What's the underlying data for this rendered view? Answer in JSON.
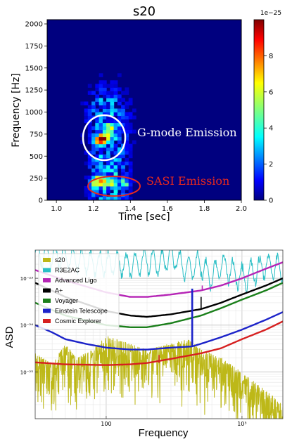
{
  "chart_data": [
    {
      "type": "heatmap",
      "title": "s20",
      "xlabel": "Time [sec]",
      "ylabel": "Frequency [Hz]",
      "xlim": [
        0.95,
        2.0
      ],
      "ylim": [
        0,
        2048
      ],
      "xticks": [
        "1.0",
        "1.2",
        "1.4",
        "1.6",
        "1.8",
        "2.0"
      ],
      "yticks": [
        "0",
        "250",
        "500",
        "750",
        "1000",
        "1250",
        "1500",
        "1750",
        "2000"
      ],
      "colorbar": {
        "label": "1e−25",
        "range": [
          0,
          10
        ],
        "ticks": [
          "0",
          "2",
          "4",
          "6",
          "8"
        ]
      },
      "colormap": "jet",
      "annotations": [
        {
          "text": "G-mode Emission",
          "color": "#ffffff",
          "ellipse_color": "#ffffff",
          "ellipse_center": [
            1.25,
            700
          ]
        },
        {
          "text": "SASI Emission",
          "color": "#e8281e",
          "ellipse_color": "#e8281e",
          "ellipse_center": [
            1.3,
            160
          ]
        }
      ],
      "cells_description_values": [
        {
          "t": 1.22,
          "f": 660,
          "v": 9.5
        },
        {
          "t": 1.25,
          "f": 700,
          "v": 7.5
        },
        {
          "t": 1.28,
          "f": 800,
          "v": 6.0
        },
        {
          "t": 1.2,
          "f": 180,
          "v": 7.0
        },
        {
          "t": 1.24,
          "f": 200,
          "v": 6.0
        },
        {
          "t": 1.3,
          "f": 190,
          "v": 5.0
        },
        {
          "t": 1.36,
          "f": 180,
          "v": 4.5
        }
      ]
    },
    {
      "type": "line",
      "xlabel": "Frequency",
      "ylabel": "ASD",
      "xscale": "log",
      "yscale": "log",
      "xlim": [
        30,
        2000
      ],
      "ylim": [
        1e-26,
        4e-23
      ],
      "xticks": [
        "100",
        "10³"
      ],
      "yticks": [
        "10⁻²³",
        "10⁻²⁴",
        "10⁻²⁵"
      ],
      "grid": true,
      "legend_position": "top-left",
      "series": [
        {
          "name": "s20",
          "color": "#bdb818",
          "x": [
            30,
            40,
            50,
            60,
            80,
            100,
            150,
            200,
            300,
            400,
            500,
            700,
            1000,
            1500,
            2000
          ],
          "y": [
            2.5e-25,
            1.5e-25,
            4e-25,
            2e-25,
            3e-25,
            6e-25,
            4e-25,
            3e-25,
            4e-25,
            5e-25,
            3e-25,
            2e-25,
            1e-25,
            4e-26,
            2e-26
          ]
        },
        {
          "name": "R3E2AC",
          "color": "#2bbfc6",
          "x": [
            30,
            40,
            60,
            100,
            150,
            200,
            250,
            300,
            400,
            500,
            600,
            700,
            1000,
            1500,
            2000
          ],
          "y": [
            3.5e-23,
            3e-23,
            2.5e-23,
            2e-23,
            2e-23,
            2.5e-23,
            2e-23,
            3e-23,
            1.5e-23,
            2e-23,
            1e-23,
            2e-23,
            1e-23,
            2e-23,
            1.5e-23
          ]
        },
        {
          "name": "Advanced Ligo",
          "color": "#b625b6",
          "x": [
            30,
            50,
            100,
            150,
            200,
            300,
            500,
            700,
            1000,
            1500,
            2000
          ],
          "y": [
            1.5e-23,
            9e-24,
            5e-24,
            4e-24,
            4e-24,
            4.5e-24,
            5.5e-24,
            7e-24,
            1e-23,
            1.6e-23,
            2.2e-23
          ]
        },
        {
          "name": "A+",
          "color": "#000000",
          "x": [
            30,
            50,
            100,
            150,
            200,
            300,
            500,
            700,
            1000,
            1500,
            2000
          ],
          "y": [
            8e-24,
            4e-24,
            2e-24,
            1.6e-24,
            1.5e-24,
            1.7e-24,
            2.2e-24,
            3e-24,
            4.5e-24,
            7e-24,
            1e-23
          ]
        },
        {
          "name": "Voyager",
          "color": "#1a7f1a",
          "x": [
            30,
            50,
            100,
            150,
            200,
            300,
            500,
            700,
            1000,
            1500,
            2000
          ],
          "y": [
            3e-24,
            1.6e-24,
            1e-24,
            9e-25,
            9e-25,
            1.1e-24,
            1.6e-24,
            2.3e-24,
            3.5e-24,
            5.5e-24,
            8e-24
          ]
        },
        {
          "name": "Einstein Telescope",
          "color": "#1c23c9",
          "x": [
            30,
            40,
            50,
            70,
            100,
            150,
            200,
            300,
            430,
            500,
            700,
            1000,
            1500,
            2000
          ],
          "y": [
            1e-24,
            7e-25,
            5e-25,
            4e-25,
            3.3e-25,
            3e-25,
            3e-25,
            3.3e-25,
            3.5e-25,
            4e-25,
            5.5e-25,
            8e-25,
            1.3e-24,
            1.9e-24
          ]
        },
        {
          "name": "Cosmic Explorer",
          "color": "#d62020",
          "x": [
            30,
            50,
            100,
            150,
            200,
            300,
            500,
            700,
            1000,
            1500,
            2000
          ],
          "y": [
            1.6e-25,
            1.45e-25,
            1.4e-25,
            1.45e-25,
            1.55e-25,
            1.9e-25,
            2.5e-25,
            3.2e-25,
            5e-25,
            8e-25,
            1.2e-24
          ]
        }
      ]
    }
  ]
}
